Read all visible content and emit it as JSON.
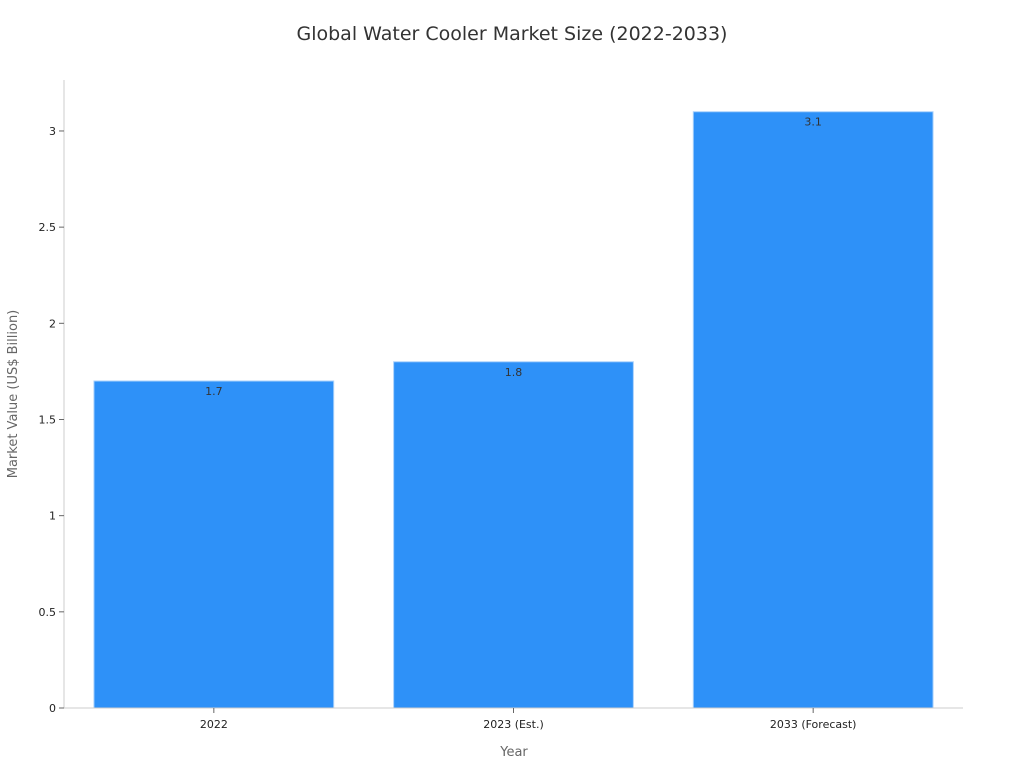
{
  "chart_data": {
    "type": "bar",
    "title": "Global Water Cooler Market Size (2022-2033)",
    "xlabel": "Year",
    "ylabel": "Market Value (US$ Billion)",
    "categories": [
      "2022",
      "2023 (Est.)",
      "2033 (Forecast)"
    ],
    "values": [
      1.7,
      1.8,
      3.1
    ],
    "data_labels": [
      "1.7",
      "1.8",
      "3.1"
    ],
    "yticks": [
      0,
      0.5,
      1,
      1.5,
      2,
      2.5,
      3
    ],
    "ytick_labels": [
      "0",
      "0.5",
      "1",
      "1.5",
      "2",
      "2.5",
      "3"
    ],
    "ylim": [
      0,
      3.265
    ],
    "grid": false,
    "legend": "none",
    "bar_color": "#2e91f8",
    "bar_edge_color": "#a8d0fb"
  }
}
